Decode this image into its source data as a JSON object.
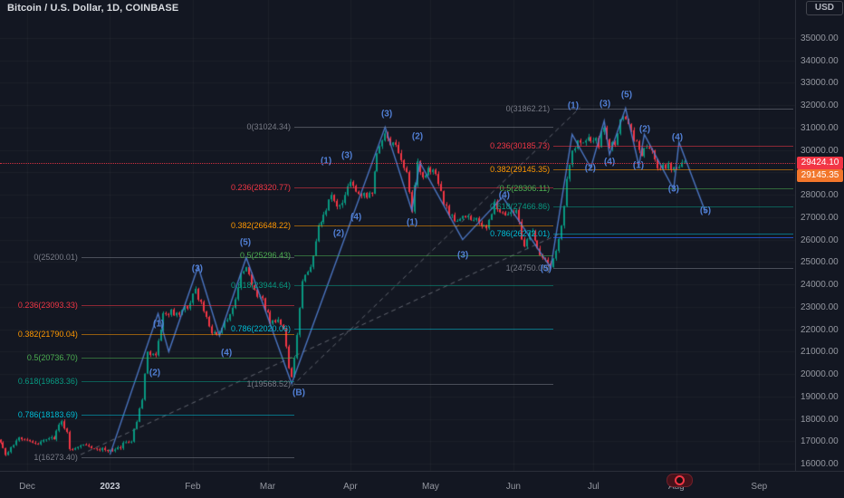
{
  "header": {
    "symbol_title": "Bitcoin / U.S. Dollar, 1D, COINBASE",
    "currency_button_label": "USD"
  },
  "badges": {
    "last_price": {
      "text": "29424.10",
      "value": 29424.1,
      "color": "#f23645"
    },
    "secondary_price": {
      "text": "29145.35",
      "value": 29145.35,
      "color": "#f2762b"
    }
  },
  "chart_data": {
    "type": "candlestick",
    "title": "Bitcoin / U.S. Dollar",
    "interval": "1D",
    "exchange": "COINBASE",
    "price_axis": {
      "min": 16000,
      "max": 35000,
      "tick_step": 1000,
      "tick_labels": [
        "35000.00",
        "34000.00",
        "33000.00",
        "32000.00",
        "31000.00",
        "30000.00",
        "29000.00",
        "28000.00",
        "27000.00",
        "26000.00",
        "25000.00",
        "24000.00",
        "23000.00",
        "22000.00",
        "21000.00",
        "20000.00",
        "19000.00",
        "18000.00",
        "17000.00",
        "16000.00"
      ]
    },
    "time_axis": [
      {
        "label": "Dec",
        "day": 0,
        "year": false
      },
      {
        "label": "2023",
        "day": 31,
        "year": true
      },
      {
        "label": "Feb",
        "day": 62,
        "year": false
      },
      {
        "label": "Mar",
        "day": 90,
        "year": false
      },
      {
        "label": "Apr",
        "day": 121,
        "year": false
      },
      {
        "label": "May",
        "day": 151,
        "year": false
      },
      {
        "label": "Jun",
        "day": 182,
        "year": false
      },
      {
        "label": "Jul",
        "day": 212,
        "year": false
      },
      {
        "label": "Aug",
        "day": 243,
        "year": false
      },
      {
        "label": "Sep",
        "day": 274,
        "year": false
      }
    ],
    "first_day": -10,
    "last_day": 246,
    "price_path_anchors": [
      [
        -10,
        17000
      ],
      [
        -8,
        16300
      ],
      [
        -6,
        16650
      ],
      [
        -3,
        17100
      ],
      [
        0,
        17150
      ],
      [
        3,
        16880
      ],
      [
        7,
        17080
      ],
      [
        10,
        17180
      ],
      [
        13,
        17950
      ],
      [
        15,
        17350
      ],
      [
        16,
        16680
      ],
      [
        19,
        16750
      ],
      [
        23,
        16820
      ],
      [
        26,
        16700
      ],
      [
        29,
        16600
      ],
      [
        31,
        16530
      ],
      [
        33,
        16650
      ],
      [
        36,
        16850
      ],
      [
        39,
        17000
      ],
      [
        41,
        17950
      ],
      [
        43,
        18900
      ],
      [
        45,
        20950
      ],
      [
        48,
        20900
      ],
      [
        51,
        22680
      ],
      [
        54,
        22780
      ],
      [
        57,
        22650
      ],
      [
        60,
        23050
      ],
      [
        63,
        23740
      ],
      [
        66,
        22850
      ],
      [
        69,
        21750
      ],
      [
        72,
        21800
      ],
      [
        75,
        22450
      ],
      [
        78,
        23300
      ],
      [
        80,
        24550
      ],
      [
        82,
        24820
      ],
      [
        84,
        23950
      ],
      [
        86,
        23520
      ],
      [
        88,
        23250
      ],
      [
        91,
        22360
      ],
      [
        94,
        22440
      ],
      [
        96,
        21990
      ],
      [
        98,
        20250
      ],
      [
        99,
        19900
      ],
      [
        101,
        21750
      ],
      [
        103,
        24200
      ],
      [
        106,
        24750
      ],
      [
        109,
        26480
      ],
      [
        112,
        27450
      ],
      [
        114,
        28100
      ],
      [
        116,
        27400
      ],
      [
        118,
        27750
      ],
      [
        121,
        28450
      ],
      [
        124,
        28100
      ],
      [
        127,
        27850
      ],
      [
        129,
        28050
      ],
      [
        131,
        29750
      ],
      [
        133,
        30350
      ],
      [
        134,
        30850
      ],
      [
        136,
        30300
      ],
      [
        138,
        30350
      ],
      [
        140,
        29500
      ],
      [
        142,
        28900
      ],
      [
        144,
        27350
      ],
      [
        146,
        29350
      ],
      [
        148,
        28900
      ],
      [
        150,
        29050
      ],
      [
        152,
        29250
      ],
      [
        154,
        28650
      ],
      [
        156,
        27700
      ],
      [
        158,
        27000
      ],
      [
        161,
        26850
      ],
      [
        164,
        27050
      ],
      [
        167,
        26900
      ],
      [
        170,
        26750
      ],
      [
        172,
        26350
      ],
      [
        175,
        27550
      ],
      [
        178,
        27250
      ],
      [
        181,
        27100
      ],
      [
        183,
        27250
      ],
      [
        185,
        26100
      ],
      [
        186,
        25750
      ],
      [
        188,
        26450
      ],
      [
        190,
        26000
      ],
      [
        192,
        25450
      ],
      [
        194,
        25050
      ],
      [
        196,
        24900
      ],
      [
        198,
        25550
      ],
      [
        200,
        26500
      ],
      [
        202,
        28800
      ],
      [
        204,
        30050
      ],
      [
        206,
        30450
      ],
      [
        208,
        30250
      ],
      [
        210,
        30400
      ],
      [
        212,
        30550
      ],
      [
        214,
        30250
      ],
      [
        216,
        31150
      ],
      [
        218,
        30100
      ],
      [
        220,
        30350
      ],
      [
        222,
        31250
      ],
      [
        224,
        31550
      ],
      [
        226,
        30850
      ],
      [
        228,
        30250
      ],
      [
        230,
        29850
      ],
      [
        232,
        30000
      ],
      [
        234,
        30100
      ],
      [
        236,
        29100
      ],
      [
        238,
        29300
      ],
      [
        240,
        29350
      ],
      [
        242,
        29150
      ],
      [
        244,
        29300
      ],
      [
        246,
        29424
      ]
    ],
    "fib_sets": [
      {
        "name": "fib-retracement-dec-feb",
        "from_day": 20.3,
        "to_day": 100,
        "levels": [
          {
            "ratio": "0",
            "price": 25200.01,
            "label": "0(25200.01)",
            "color": "#787b86"
          },
          {
            "ratio": "0.236",
            "price": 23093.33,
            "label": "0.236(23093.33)",
            "color": "#f23645"
          },
          {
            "ratio": "0.382",
            "price": 21790.04,
            "label": "0.382(21790.04)",
            "color": "#ff9800"
          },
          {
            "ratio": "0.5",
            "price": 20736.7,
            "label": "0.5(20736.70)",
            "color": "#4caf50"
          },
          {
            "ratio": "0.618",
            "price": 19683.36,
            "label": "0.618(19683.36)",
            "color": "#089981"
          },
          {
            "ratio": "0.786",
            "price": 18183.69,
            "label": "0.786(18183.69)",
            "color": "#00bcd4"
          },
          {
            "ratio": "1",
            "price": 16273.4,
            "label": "1(16273.40)",
            "color": "#787b86"
          }
        ]
      },
      {
        "name": "fib-retracement-mar-apr",
        "from_day": 100,
        "to_day": 197,
        "levels": [
          {
            "ratio": "0",
            "price": 31024.34,
            "label": "0(31024.34)",
            "color": "#787b86"
          },
          {
            "ratio": "0.236",
            "price": 28320.77,
            "label": "0.236(28320.77)",
            "color": "#f23645"
          },
          {
            "ratio": "0.382",
            "price": 26648.22,
            "label": "0.382(26648.22)",
            "color": "#ff9800"
          },
          {
            "ratio": "0.5",
            "price": 25296.43,
            "label": "0.5(25296.43)",
            "color": "#4caf50"
          },
          {
            "ratio": "0.618",
            "price": 23944.64,
            "label": "0.618(23944.64)",
            "color": "#089981"
          },
          {
            "ratio": "0.786",
            "price": 22020.06,
            "label": "0.786(22020.06)",
            "color": "#00bcd4"
          },
          {
            "ratio": "1",
            "price": 19568.52,
            "label": "1(19568.52)",
            "color": "#787b86"
          }
        ]
      },
      {
        "name": "fib-retracement-jun-jul",
        "from_day": 197,
        "to_day": 300,
        "levels": [
          {
            "ratio": "0",
            "price": 31862.21,
            "label": "0(31862.21)",
            "color": "#787b86"
          },
          {
            "ratio": "0.236",
            "price": 30185.73,
            "label": "0.236(30185.73)",
            "color": "#f23645"
          },
          {
            "ratio": "0.382",
            "price": 29145.35,
            "label": "0.382(29145.35)",
            "color": "#ff9800"
          },
          {
            "ratio": "0.5",
            "price": 28306.11,
            "label": "0.5(28306.11)",
            "color": "#4caf50"
          },
          {
            "ratio": "0.618",
            "price": 27466.86,
            "label": "0.618(27466.86)",
            "color": "#089981"
          },
          {
            "ratio": "0.786",
            "price": 26272.01,
            "label": "0.786(26272.01)",
            "color": "#00bcd4"
          },
          {
            "ratio": "1",
            "price": 24750.0,
            "label": "1(24750.00)",
            "color": "#787b86"
          }
        ]
      }
    ],
    "wave_labels": [
      {
        "text": "(1)",
        "day": 49.2,
        "price": 22230
      },
      {
        "text": "(2)",
        "day": 47.8,
        "price": 20040
      },
      {
        "text": "(3)",
        "day": 63.7,
        "price": 24690
      },
      {
        "text": "(4)",
        "day": 74.6,
        "price": 20930
      },
      {
        "text": "(5)",
        "day": 81.7,
        "price": 25860
      },
      {
        "text": "(B)",
        "day": 101.7,
        "price": 19150
      },
      {
        "text": "(1)",
        "day": 111.9,
        "price": 29500
      },
      {
        "text": "(2)",
        "day": 116.6,
        "price": 26270
      },
      {
        "text": "(3)",
        "day": 119.7,
        "price": 29750
      },
      {
        "text": "(4)",
        "day": 123.1,
        "price": 27000
      },
      {
        "text": "(3)",
        "day": 134.6,
        "price": 31600
      },
      {
        "text": "(1)",
        "day": 144.1,
        "price": 26750
      },
      {
        "text": "(2)",
        "day": 146.1,
        "price": 30590
      },
      {
        "text": "(3)",
        "day": 163.1,
        "price": 25300
      },
      {
        "text": "(4)",
        "day": 178.6,
        "price": 27950
      },
      {
        "text": "(5)",
        "day": 194.2,
        "price": 24690
      },
      {
        "text": "(1)",
        "day": 204.4,
        "price": 31970
      },
      {
        "text": "(2)",
        "day": 210.8,
        "price": 29180
      },
      {
        "text": "(3)",
        "day": 216.3,
        "price": 32050
      },
      {
        "text": "(4)",
        "day": 218.0,
        "price": 29460
      },
      {
        "text": "(5)",
        "day": 224.4,
        "price": 32450
      },
      {
        "text": "(1)",
        "day": 228.8,
        "price": 29300
      },
      {
        "text": "(2)",
        "day": 231.2,
        "price": 30920
      },
      {
        "text": "(3)",
        "day": 242.0,
        "price": 28250
      },
      {
        "text": "(4)",
        "day": 243.4,
        "price": 30550
      },
      {
        "text": "(5)",
        "day": 253.9,
        "price": 27280
      }
    ],
    "drawings": {
      "wave_polyline": [
        [
          31,
          16400
        ],
        [
          49,
          22700
        ],
        [
          53,
          21000
        ],
        [
          64,
          24800
        ],
        [
          72,
          21700
        ],
        [
          82,
          25200
        ],
        [
          99,
          19570
        ],
        [
          134,
          31024
        ],
        [
          144,
          27300
        ],
        [
          147,
          29450
        ],
        [
          163,
          26000
        ],
        [
          178,
          27900
        ],
        [
          196,
          24750
        ],
        [
          204,
          30700
        ],
        [
          211,
          29200
        ],
        [
          216,
          31300
        ],
        [
          218,
          29800
        ],
        [
          224,
          31862
        ],
        [
          229,
          29300
        ],
        [
          231,
          30700
        ],
        [
          242,
          28250
        ],
        [
          244,
          30350
        ],
        [
          254,
          27200
        ]
      ],
      "trendlines": [
        {
          "from": [
            20,
            16400
          ],
          "to": [
            200,
            26300
          ]
        },
        {
          "from": [
            99,
            19450
          ],
          "to": [
            207,
            31900
          ]
        }
      ],
      "horizontal_ray": {
        "price": 26100,
        "from_day": 197,
        "to_day": 300,
        "color": "#2962ff"
      }
    },
    "colors": {
      "background": "#131722",
      "up": "#089981",
      "down": "#f23645",
      "wave": "#517fd4",
      "trendline": "#9598a1",
      "last_price_line": "#f23645"
    }
  }
}
